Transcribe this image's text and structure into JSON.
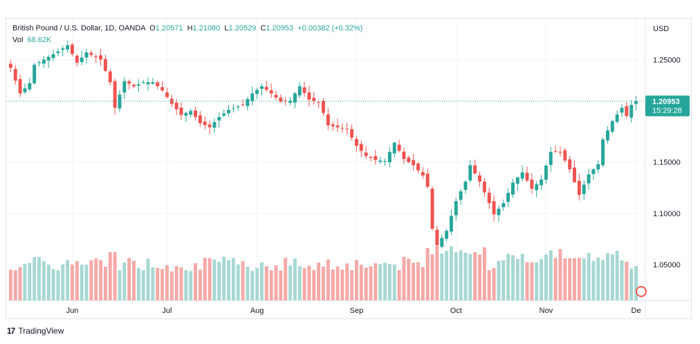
{
  "chart_data": {
    "type": "candlestick",
    "instrument": {
      "name": "British Pound / U.S. Dollar",
      "interval": "1D",
      "source": "OANDA",
      "open_label": "O",
      "open": "1.20571",
      "high_label": "H",
      "high": "1.21080",
      "low_label": "L",
      "low": "1.20529",
      "close_label": "C",
      "close": "1.20953",
      "change": "+0.00382 (+0.32%)"
    },
    "volume": {
      "label": "Vol",
      "value": "68.62K"
    },
    "currency_label": "USD",
    "ylim": [
      1.015,
      1.29
    ],
    "yticks": [
      {
        "value": 1.25,
        "label": "1.25000"
      },
      {
        "value": 1.15,
        "label": "1.15000"
      },
      {
        "value": 1.1,
        "label": "1.10000"
      },
      {
        "value": 1.05,
        "label": "1.05000"
      }
    ],
    "price_marker": {
      "value": 1.20953,
      "label": "1.20953",
      "countdown": "15:29:28"
    },
    "xticks": [
      {
        "index": 13,
        "label": "Jun"
      },
      {
        "index": 33,
        "label": "Jul"
      },
      {
        "index": 52,
        "label": "Aug"
      },
      {
        "index": 73,
        "label": "Sep"
      },
      {
        "index": 94,
        "label": "Oct"
      },
      {
        "index": 113,
        "label": "Nov"
      },
      {
        "index": 132,
        "label": "De"
      }
    ],
    "num_bars": 133,
    "ohlc_keypoints": [
      [
        0,
        1.242,
        1.227
      ],
      [
        2,
        1.217,
        1.217
      ],
      [
        4,
        1.227,
        1.227
      ],
      [
        5,
        1.245,
        1.245
      ],
      [
        7,
        1.25,
        1.25
      ],
      [
        10,
        1.258,
        1.258
      ],
      [
        12,
        1.264,
        1.264
      ],
      [
        14,
        1.247,
        1.247
      ],
      [
        16,
        1.257,
        1.257
      ],
      [
        19,
        1.25,
        1.25
      ],
      [
        21,
        1.228,
        1.228
      ],
      [
        22,
        1.203,
        1.203
      ],
      [
        24,
        1.229,
        1.229
      ],
      [
        26,
        1.224,
        1.224
      ],
      [
        28,
        1.228,
        1.228
      ],
      [
        30,
        1.228,
        1.228
      ],
      [
        32,
        1.22,
        1.22
      ],
      [
        34,
        1.207,
        1.207
      ],
      [
        36,
        1.196,
        1.196
      ],
      [
        38,
        1.2,
        1.2
      ],
      [
        40,
        1.188,
        1.188
      ],
      [
        42,
        1.184,
        1.184
      ],
      [
        44,
        1.194,
        1.194
      ],
      [
        46,
        1.201,
        1.201
      ],
      [
        49,
        1.206,
        1.206
      ],
      [
        51,
        1.217,
        1.217
      ],
      [
        53,
        1.224,
        1.224
      ],
      [
        55,
        1.217,
        1.217
      ],
      [
        57,
        1.209,
        1.209
      ],
      [
        59,
        1.21,
        1.21
      ],
      [
        61,
        1.224,
        1.224
      ],
      [
        63,
        1.211,
        1.211
      ],
      [
        65,
        1.208,
        1.208
      ],
      [
        66,
        1.198,
        1.198
      ],
      [
        67,
        1.186,
        1.186
      ],
      [
        69,
        1.184,
        1.184
      ],
      [
        71,
        1.182,
        1.182
      ],
      [
        73,
        1.166,
        1.166
      ],
      [
        75,
        1.156,
        1.156
      ],
      [
        77,
        1.152,
        1.152
      ],
      [
        79,
        1.151,
        1.151
      ],
      [
        81,
        1.169,
        1.169
      ],
      [
        83,
        1.153,
        1.153
      ],
      [
        85,
        1.147,
        1.147
      ],
      [
        87,
        1.137,
        1.137
      ],
      [
        88,
        1.126,
        1.126
      ],
      [
        89,
        1.085,
        1.085
      ],
      [
        90,
        1.069,
        1.069
      ],
      [
        92,
        1.083,
        1.083
      ],
      [
        94,
        1.112,
        1.112
      ],
      [
        96,
        1.131,
        1.131
      ],
      [
        97,
        1.147,
        1.147
      ],
      [
        99,
        1.131,
        1.131
      ],
      [
        101,
        1.11,
        1.11
      ],
      [
        102,
        1.099,
        1.099
      ],
      [
        104,
        1.11,
        1.11
      ],
      [
        106,
        1.13,
        1.13
      ],
      [
        108,
        1.14,
        1.14
      ],
      [
        110,
        1.124,
        1.124
      ],
      [
        112,
        1.133,
        1.133
      ],
      [
        114,
        1.16,
        1.16
      ],
      [
        116,
        1.16,
        1.16
      ],
      [
        118,
        1.143,
        1.143
      ],
      [
        120,
        1.118,
        1.118
      ],
      [
        122,
        1.138,
        1.138
      ],
      [
        124,
        1.148,
        1.148
      ],
      [
        125,
        1.172,
        1.172
      ],
      [
        127,
        1.19,
        1.19
      ],
      [
        129,
        1.203,
        1.203
      ],
      [
        130,
        1.195,
        1.195
      ],
      [
        131,
        1.2057,
        1.2057
      ],
      [
        132,
        1.2095,
        1.2095
      ]
    ]
  }
}
